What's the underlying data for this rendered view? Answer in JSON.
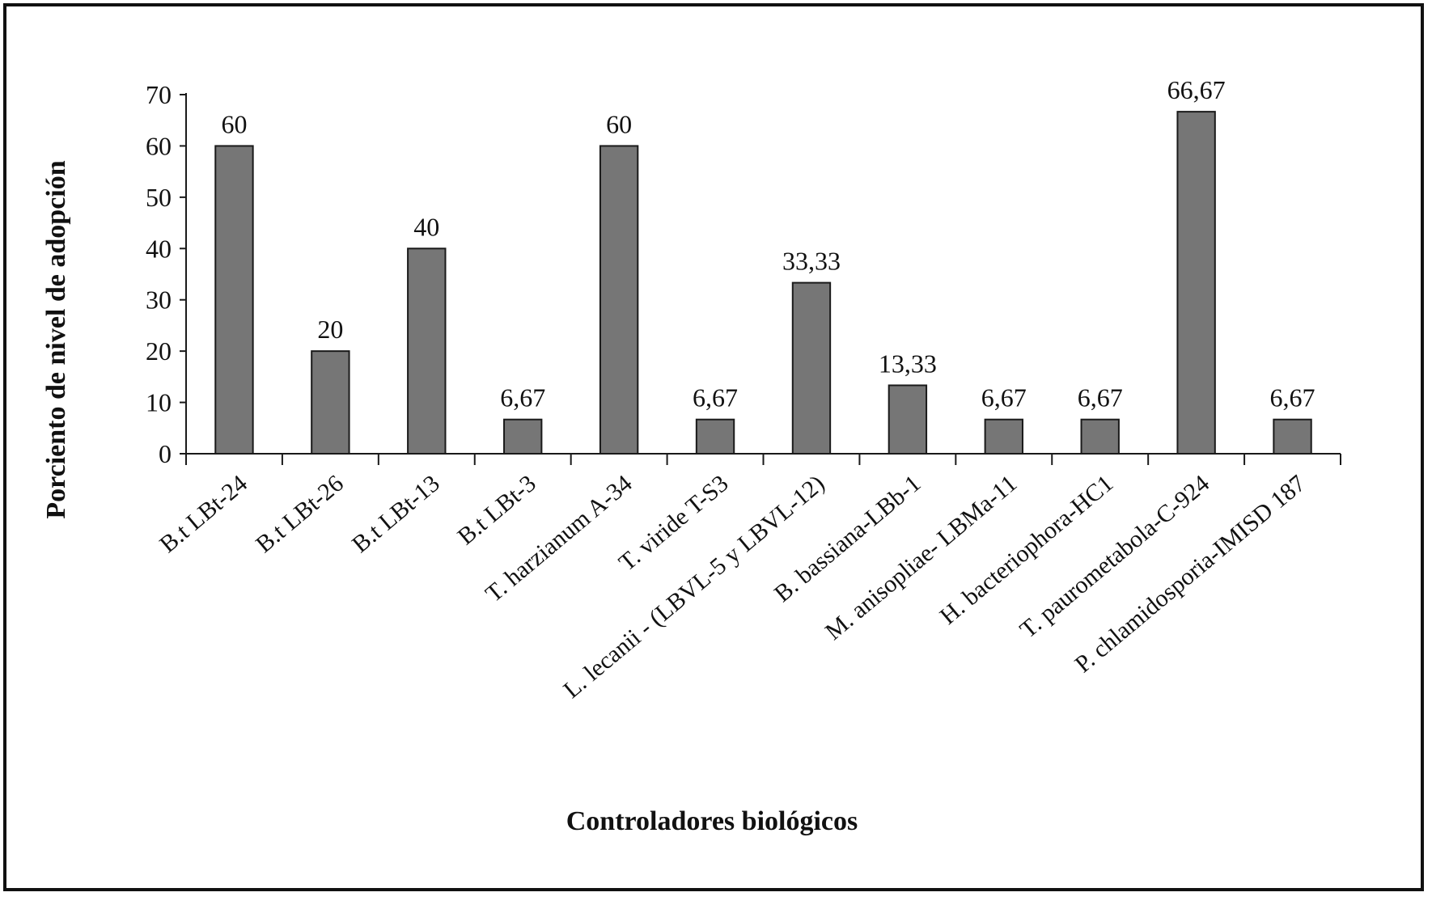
{
  "chart_data": {
    "type": "bar",
    "title": "",
    "xlabel": "Controladores biológicos",
    "ylabel": "Porciento de nivel de adopción",
    "ylim": [
      0,
      70
    ],
    "yticks": [
      "0",
      "10",
      "20",
      "30",
      "40",
      "50",
      "60",
      "70"
    ],
    "grid": false,
    "legend": "none",
    "colors": {
      "bar": "#767676",
      "bar_stroke": "#1a1a1a",
      "axis": "#1a1a1a",
      "frame": "#111111"
    },
    "categories": [
      "B.t LBt-24",
      "B.t LBt-26",
      "B.t LBt-13",
      "B.t LBt-3",
      "T. harzianum A-34",
      "T. viride T-S3",
      "L. lecanii - (LBVL-5 y LBVL-12)",
      "B. bassiana-LBb-1",
      "M. anisopliae- LBMa-11",
      "H. bacteriophora-HC1",
      "T. paurometabola-C-924",
      "P. chlamidosporia-IMISD 187"
    ],
    "values": [
      60,
      20,
      40,
      6.67,
      60,
      6.67,
      33.33,
      13.33,
      6.67,
      6.67,
      66.67,
      6.67
    ],
    "data_labels": [
      "60",
      "20",
      "40",
      "6,67",
      "60",
      "6,67",
      "33,33",
      "13,33",
      "6,67",
      "6,67",
      "66,67",
      "6,67"
    ]
  }
}
